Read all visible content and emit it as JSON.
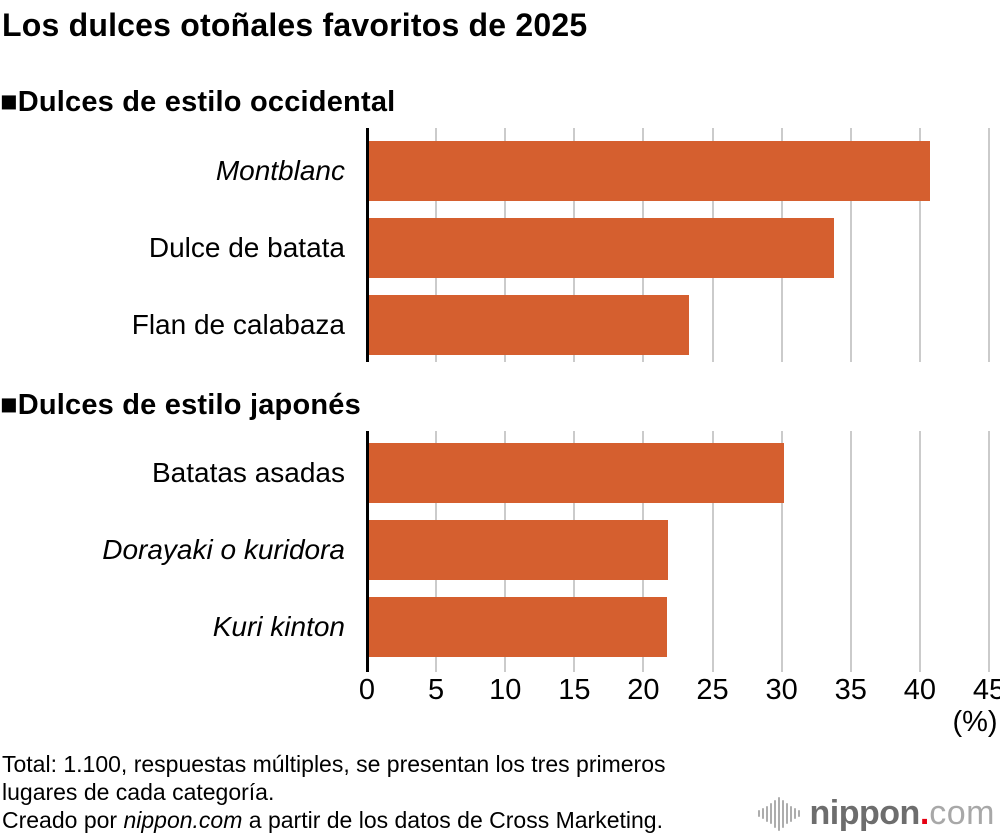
{
  "title": "Los dulces otoñales favoritos de 2025",
  "colors": {
    "bar": "#D55F2F",
    "grid": "#CBCBCB",
    "axis": "#000000",
    "logo_dark": "#6D6D6D",
    "logo_light": "#A8A8A8",
    "logo_dot": "#E60012",
    "wave_gray": "#ADADAD"
  },
  "axis": {
    "ticks": [
      0,
      5,
      10,
      15,
      20,
      25,
      30,
      35,
      40,
      45
    ],
    "max": 45,
    "unit_label": "(%)"
  },
  "sections": [
    {
      "header": "■Dulces de estilo occidental",
      "items": [
        {
          "label": "Montblanc",
          "value": 40.7,
          "italic": true
        },
        {
          "label": "Dulce de batata",
          "value": 33.8,
          "italic": false
        },
        {
          "label": "Flan de calabaza",
          "value": 23.3,
          "italic": false
        }
      ]
    },
    {
      "header": "■Dulces de estilo japonés",
      "items": [
        {
          "label": "Batatas asadas",
          "value": 30.2,
          "italic": false
        },
        {
          "label": "Dorayaki o kuridora",
          "value": 21.8,
          "italic": true
        },
        {
          "label": "Kuri kinton",
          "value": 21.7,
          "italic": true
        }
      ]
    }
  ],
  "footer": {
    "line1": "Total: 1.100, respuestas múltiples, se presentan los tres primeros",
    "line2": "lugares de cada categoría.",
    "line3_prefix": "Creado por ",
    "line3_italic": "nippon.com",
    "line3_suffix": " a partir de los datos de Cross Marketing."
  },
  "logo": {
    "name": "nippon",
    "dot": ".",
    "tld": "com",
    "wave_heights": [
      7,
      11,
      16,
      21,
      28,
      34,
      28,
      21,
      16,
      11,
      7
    ]
  },
  "chart_data": {
    "type": "bar",
    "orientation": "horizontal",
    "title": "Los dulces otoñales favoritos de 2025",
    "groups": [
      {
        "name": "Dulces de estilo occidental",
        "categories": [
          "Montblanc",
          "Dulce de batata",
          "Flan de calabaza"
        ],
        "values": [
          40.7,
          33.8,
          23.3
        ]
      },
      {
        "name": "Dulces de estilo japonés",
        "categories": [
          "Batatas asadas",
          "Dorayaki o kuridora",
          "Kuri kinton"
        ],
        "values": [
          30.2,
          21.8,
          21.7
        ]
      }
    ],
    "xlabel": "(%)",
    "xlim": [
      0,
      45
    ],
    "xticks": [
      0,
      5,
      10,
      15,
      20,
      25,
      30,
      35,
      40,
      45
    ],
    "grid": true,
    "bar_color": "#D55F2F",
    "source_note": "Total: 1.100, respuestas múltiples, se presentan los tres primeros lugares de cada categoría. Creado por nippon.com a partir de los datos de Cross Marketing."
  }
}
